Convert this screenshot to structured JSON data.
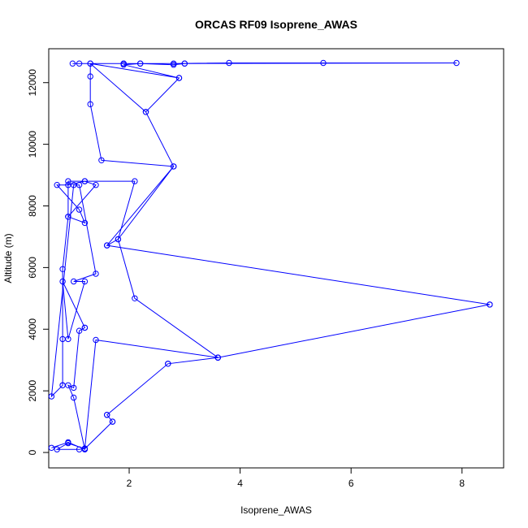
{
  "chart_data": {
    "type": "line",
    "title": "ORCAS RF09 Isoprene_AWAS",
    "xlabel": "Isoprene_AWAS",
    "ylabel": "Altitude (m)",
    "xlim": [
      0.55,
      8.75
    ],
    "ylim": [
      -500,
      13100
    ],
    "xticks": [
      2,
      4,
      6,
      8
    ],
    "xtick_labels": [
      "2",
      "4",
      "6",
      "8"
    ],
    "yticks": [
      0,
      2000,
      4000,
      6000,
      8000,
      10000,
      12000
    ],
    "ytick_labels": [
      "0",
      "2000",
      "4000",
      "6000",
      "8000",
      "10000",
      "12000"
    ],
    "grid": false,
    "color": "#0000ff",
    "marker": "open-circle",
    "series": [
      {
        "x": [
          0.6,
          0.9,
          1.2,
          1.0,
          0.9,
          1.0,
          1.1,
          1.2,
          1.2,
          0.8,
          0.9,
          1.2,
          1.0,
          1.4,
          1.1,
          1.0,
          0.6,
          0.8,
          0.8,
          0.8,
          0.8,
          0.9,
          1.4,
          1.2,
          0.9,
          0.9,
          1.2,
          1.1,
          0.7,
          0.9,
          1.2,
          2.1,
          1.8,
          2.1,
          3.6,
          2.7,
          1.6,
          1.7,
          1.2,
          0.9,
          0.7,
          1.1,
          1.2,
          1.4,
          3.6,
          8.5,
          1.6,
          2.8,
          1.5,
          1.3,
          1.3,
          1.3,
          2.9,
          2.3,
          1.3,
          0.98,
          1.1,
          1.9,
          3.0,
          1.9,
          2.2,
          2.8,
          3.8,
          5.5,
          7.9,
          3.0,
          2.8,
          2.2,
          1.9,
          2.9,
          2.3,
          2.8,
          1.8,
          1.6,
          8.5,
          3.6,
          2.7,
          1.6,
          1.7
        ]
      }
    ],
    "y_series": [
      [
        150,
        330,
        100,
        1780,
        2180,
        2100,
        3950,
        4050,
        4050,
        5550,
        3680,
        5550,
        5550,
        5800,
        8680,
        8680,
        1820,
        2180,
        2180,
        3680,
        5950,
        7650,
        8680,
        8800,
        8800,
        7650,
        7450,
        7880,
        8680,
        8680,
        8800,
        8800,
        6920,
        5000,
        3080,
        2880,
        1220,
        1000,
        120,
        300,
        100,
        100,
        130,
        3650,
        3080,
        4800,
        6720,
        9280,
        9480,
        11300,
        12200,
        12620,
        12150,
        11050,
        12620,
        12620,
        12620,
        12620,
        12620,
        12620,
        12620,
        12620,
        12640,
        12640,
        12640,
        12620,
        12580,
        12620,
        12580,
        12150,
        11050,
        9280,
        6920,
        6720,
        4800,
        3080,
        2880,
        1220,
        1000
      ]
    ]
  }
}
